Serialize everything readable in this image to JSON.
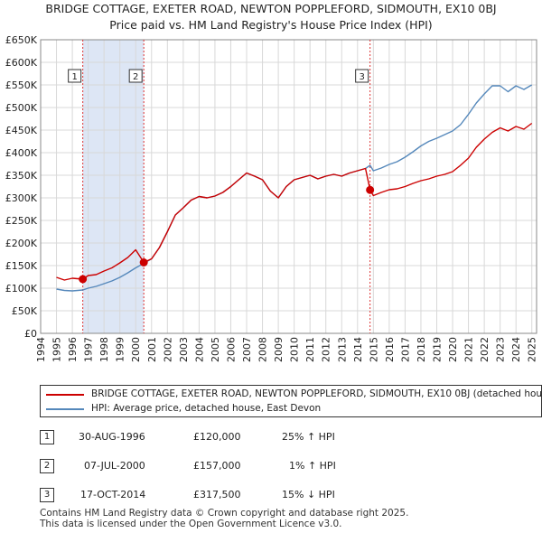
{
  "title_line1": "BRIDGE COTTAGE, EXETER ROAD, NEWTON POPPLEFORD, SIDMOUTH, EX10 0BJ",
  "title_line2": "Price paid vs. HM Land Registry's House Price Index (HPI)",
  "colors": {
    "property": "#cc0000",
    "hpi": "#5588bb",
    "shade": "#dde6f5",
    "vline": "#dd3333"
  },
  "chart_data": {
    "type": "line",
    "title": "Price paid vs. HM Land Registry's House Price Index (HPI)",
    "xlabel": "",
    "ylabel": "",
    "xlim": [
      1994,
      2025.3
    ],
    "ylim": [
      0,
      650000
    ],
    "yticks": [
      {
        "value": 0,
        "label": "£0"
      },
      {
        "value": 50000,
        "label": "£50K"
      },
      {
        "value": 100000,
        "label": "£100K"
      },
      {
        "value": 150000,
        "label": "£150K"
      },
      {
        "value": 200000,
        "label": "£200K"
      },
      {
        "value": 250000,
        "label": "£250K"
      },
      {
        "value": 300000,
        "label": "£300K"
      },
      {
        "value": 350000,
        "label": "£350K"
      },
      {
        "value": 400000,
        "label": "£400K"
      },
      {
        "value": 450000,
        "label": "£450K"
      },
      {
        "value": 500000,
        "label": "£500K"
      },
      {
        "value": 550000,
        "label": "£550K"
      },
      {
        "value": 600000,
        "label": "£600K"
      },
      {
        "value": 650000,
        "label": "£650K"
      }
    ],
    "xticks": [
      "1994",
      "1995",
      "1996",
      "1997",
      "1998",
      "1999",
      "2000",
      "2001",
      "2002",
      "2003",
      "2004",
      "2005",
      "2006",
      "2007",
      "2008",
      "2009",
      "2010",
      "2011",
      "2012",
      "2013",
      "2014",
      "2015",
      "2016",
      "2017",
      "2018",
      "2019",
      "2020",
      "2021",
      "2022",
      "2023",
      "2024",
      "2025"
    ],
    "grid": true,
    "series": [
      {
        "name": "BRIDGE COTTAGE, EXETER ROAD, NEWTON POPPLEFORD, SIDMOUTH, EX10 0BJ (detached house)",
        "x": [
          1995.0,
          1995.5,
          1996.0,
          1996.66,
          1997.0,
          1997.5,
          1998.0,
          1998.5,
          1999.0,
          1999.5,
          2000.0,
          2000.51,
          2001.0,
          2001.5,
          2002.0,
          2002.5,
          2003.0,
          2003.5,
          2004.0,
          2004.5,
          2005.0,
          2005.5,
          2006.0,
          2006.5,
          2007.0,
          2007.5,
          2008.0,
          2008.5,
          2009.0,
          2009.5,
          2010.0,
          2010.5,
          2011.0,
          2011.5,
          2012.0,
          2012.5,
          2013.0,
          2013.5,
          2014.0,
          2014.5,
          2014.79,
          2015.0,
          2015.5,
          2016.0,
          2016.5,
          2017.0,
          2017.5,
          2018.0,
          2018.5,
          2019.0,
          2019.5,
          2020.0,
          2020.5,
          2021.0,
          2021.5,
          2022.0,
          2022.5,
          2023.0,
          2023.5,
          2024.0,
          2024.5,
          2025.0
        ],
        "y": [
          124000,
          118000,
          122000,
          120000,
          128000,
          130000,
          138000,
          145000,
          156000,
          168000,
          185000,
          157000,
          165000,
          190000,
          225000,
          262000,
          278000,
          295000,
          303000,
          300000,
          304000,
          312000,
          325000,
          340000,
          355000,
          348000,
          340000,
          315000,
          300000,
          325000,
          340000,
          345000,
          350000,
          342000,
          348000,
          352000,
          348000,
          355000,
          360000,
          365000,
          317500,
          305000,
          312000,
          318000,
          320000,
          325000,
          332000,
          338000,
          342000,
          348000,
          352000,
          358000,
          372000,
          388000,
          412000,
          430000,
          445000,
          455000,
          448000,
          458000,
          452000,
          465000
        ]
      },
      {
        "name": "HPI: Average price, detached house, East Devon",
        "x": [
          1995.0,
          1995.5,
          1996.0,
          1996.66,
          1997.0,
          1997.5,
          1998.0,
          1998.5,
          1999.0,
          1999.5,
          2000.0,
          2000.51,
          2001.0,
          2001.5,
          2002.0,
          2002.5,
          2003.0,
          2003.5,
          2004.0,
          2004.5,
          2005.0,
          2005.5,
          2006.0,
          2006.5,
          2007.0,
          2007.5,
          2008.0,
          2008.5,
          2009.0,
          2009.5,
          2010.0,
          2010.5,
          2011.0,
          2011.5,
          2012.0,
          2012.5,
          2013.0,
          2013.5,
          2014.0,
          2014.5,
          2014.79,
          2015.0,
          2015.5,
          2016.0,
          2016.5,
          2017.0,
          2017.5,
          2018.0,
          2018.5,
          2019.0,
          2019.5,
          2020.0,
          2020.5,
          2021.0,
          2021.5,
          2022.0,
          2022.5,
          2023.0,
          2023.5,
          2024.0,
          2024.5,
          2025.0
        ],
        "y": [
          98000,
          95000,
          94000,
          96000,
          100000,
          104000,
          110000,
          116000,
          124000,
          134000,
          145000,
          155000,
          165000,
          190000,
          225000,
          262000,
          278000,
          295000,
          303000,
          300000,
          304000,
          312000,
          325000,
          340000,
          355000,
          348000,
          340000,
          315000,
          300000,
          325000,
          340000,
          345000,
          350000,
          342000,
          348000,
          352000,
          348000,
          355000,
          360000,
          365000,
          372000,
          360000,
          366000,
          374000,
          380000,
          390000,
          402000,
          415000,
          425000,
          432000,
          440000,
          448000,
          462000,
          485000,
          510000,
          530000,
          548000,
          548000,
          535000,
          548000,
          540000,
          550000
        ]
      }
    ],
    "sales": [
      {
        "id": "1",
        "x": 1996.66,
        "y": 120000
      },
      {
        "id": "2",
        "x": 2000.51,
        "y": 157000
      },
      {
        "id": "3",
        "x": 2014.79,
        "y": 317500
      }
    ],
    "shaded_regions": [
      [
        1996.66,
        2000.51
      ],
      [
        2014.79,
        2014.79
      ]
    ]
  },
  "legend": {
    "property": "BRIDGE COTTAGE, EXETER ROAD, NEWTON POPPLEFORD, SIDMOUTH, EX10 0BJ (detached house)",
    "hpi": "HPI: Average price, detached house, East Devon"
  },
  "transactions": [
    {
      "id": "1",
      "date": "30-AUG-1996",
      "price": "£120,000",
      "hpi": "25% ↑ HPI"
    },
    {
      "id": "2",
      "date": "07-JUL-2000",
      "price": "£157,000",
      "hpi": "1% ↑ HPI"
    },
    {
      "id": "3",
      "date": "17-OCT-2014",
      "price": "£317,500",
      "hpi": "15% ↓ HPI"
    }
  ],
  "footer": {
    "line1": "Contains HM Land Registry data © Crown copyright and database right 2025.",
    "line2": "This data is licensed under the Open Government Licence v3.0."
  }
}
